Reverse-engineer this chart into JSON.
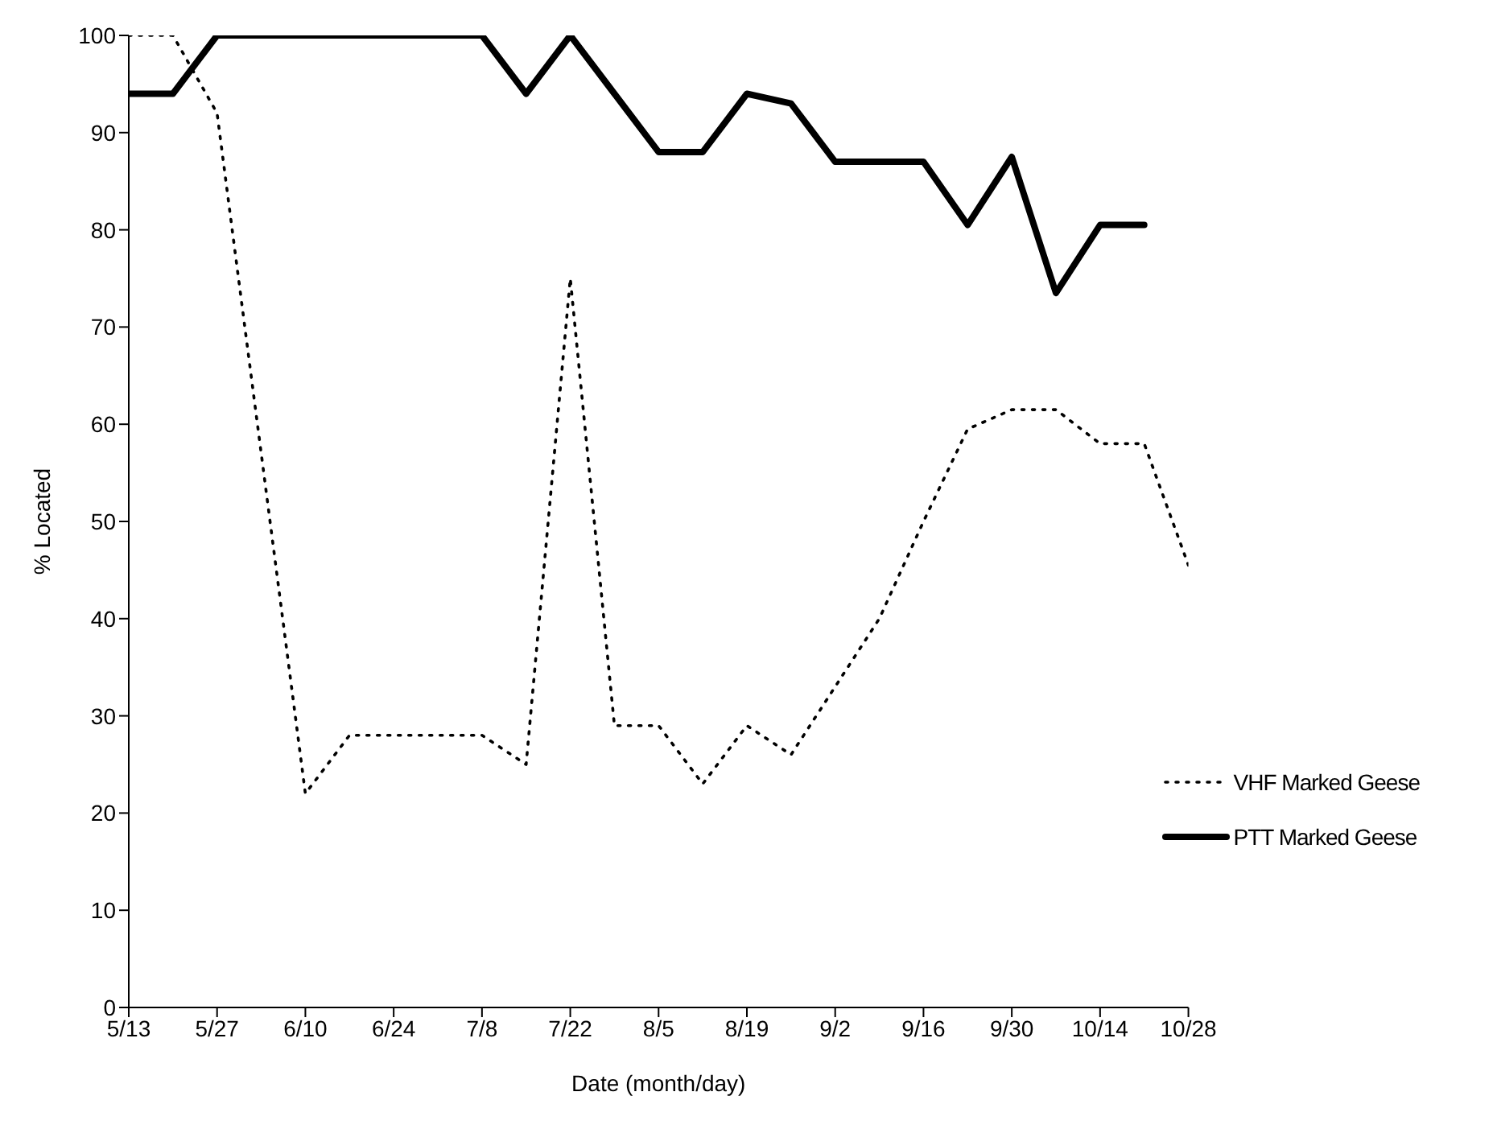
{
  "chart_data": {
    "type": "line",
    "xlabel": "Date (month/day)",
    "ylabel": "% Located",
    "x": [
      "--05-13",
      "--05-20",
      "--05-27",
      "--06-03",
      "--06-10",
      "--06-17",
      "--06-24",
      "--07-01",
      "--07-08",
      "--07-15",
      "--07-22",
      "--07-29",
      "--08-05",
      "--08-12",
      "--08-19",
      "--08-26",
      "--09-02",
      "--09-09",
      "--09-16",
      "--09-23",
      "--09-30",
      "--10-07",
      "--10-14",
      "--10-21",
      "--10-28"
    ],
    "series": [
      {
        "name": "VHF Marked Geese",
        "color": "#000000",
        "line_style": "dotted",
        "values": [
          100,
          100,
          92,
          57,
          22,
          28,
          28,
          28,
          28,
          25,
          75,
          29,
          29,
          23,
          29,
          26,
          33,
          40,
          50,
          59.5,
          61.5,
          61.5,
          58,
          58,
          45.5
        ]
      },
      {
        "name": "PTT Marked Geese",
        "color": "#000000",
        "line_style": "solid",
        "values": [
          94,
          94,
          100,
          100,
          100,
          100,
          100,
          100,
          100,
          94,
          100,
          94,
          88,
          88,
          94,
          93,
          87,
          87,
          87,
          80.5,
          87.5,
          73.5,
          80.5,
          80.5,
          null
        ]
      }
    ],
    "xlim": [
      "--05-13",
      "--10-28"
    ],
    "xticks": [
      {
        "value": "--05-13",
        "label": "5/13"
      },
      {
        "value": "--05-27",
        "label": "5/27"
      },
      {
        "value": "--06-10",
        "label": "6/10"
      },
      {
        "value": "--06-24",
        "label": "6/24"
      },
      {
        "value": "--07-08",
        "label": "7/8"
      },
      {
        "value": "--07-22",
        "label": "7/22"
      },
      {
        "value": "--08-05",
        "label": "8/5"
      },
      {
        "value": "--08-19",
        "label": "8/19"
      },
      {
        "value": "--09-02",
        "label": "9/2"
      },
      {
        "value": "--09-16",
        "label": "9/16"
      },
      {
        "value": "--09-30",
        "label": "9/30"
      },
      {
        "value": "--10-14",
        "label": "10/14"
      },
      {
        "value": "--10-28",
        "label": "10/28"
      }
    ],
    "ylim": [
      0,
      100
    ],
    "yticks": [
      0,
      10,
      20,
      30,
      40,
      50,
      60,
      70,
      80,
      90,
      100
    ],
    "grid": false,
    "legend": "right",
    "marker": "none"
  }
}
